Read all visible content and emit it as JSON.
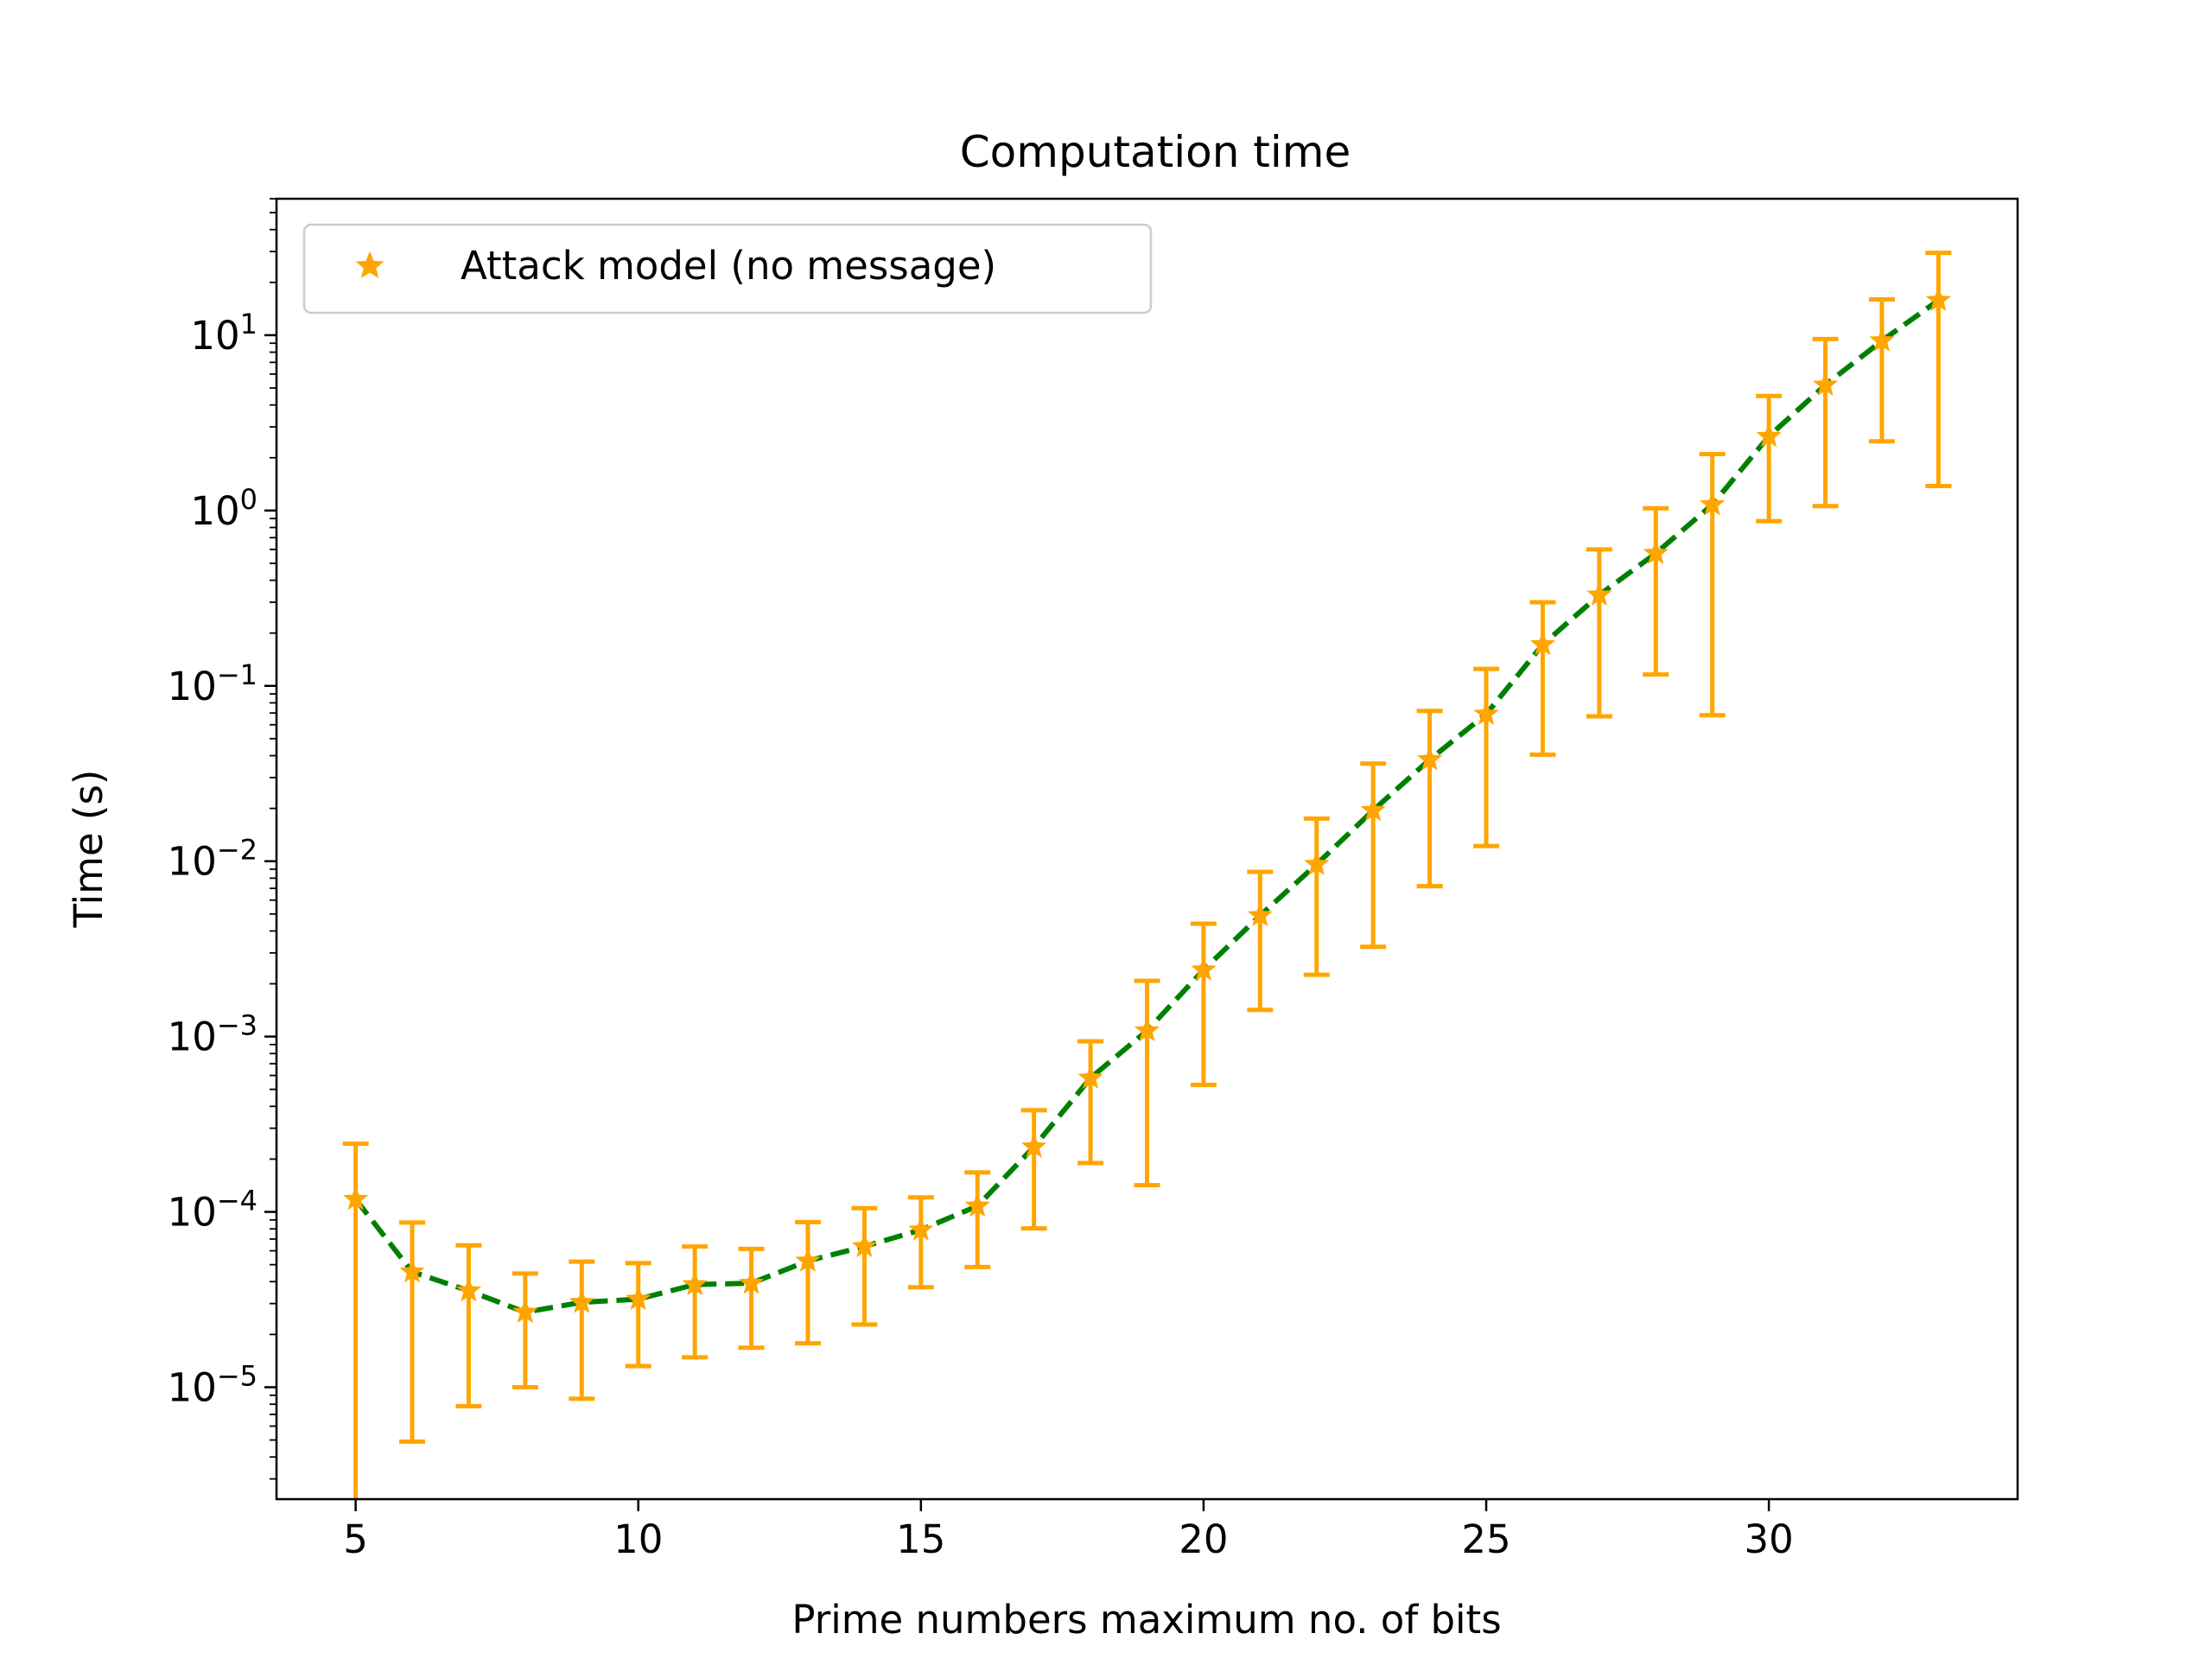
{
  "chart_data": {
    "type": "line",
    "title": "Computation time",
    "xlabel": "Prime numbers maximum no. of bits",
    "ylabel": "Time (s)",
    "y_scale": "log",
    "xlim": [
      3.6,
      34.4
    ],
    "ylim": [
      2.3e-06,
      60
    ],
    "x_ticks": [
      5,
      10,
      15,
      20,
      25,
      30
    ],
    "y_ticks": [
      {
        "base": "10",
        "exp": "1",
        "value": 10
      },
      {
        "base": "10",
        "exp": "0",
        "value": 1
      },
      {
        "base": "10",
        "exp": "−1",
        "value": 0.1
      },
      {
        "base": "10",
        "exp": "−2",
        "value": 0.01
      },
      {
        "base": "10",
        "exp": "−3",
        "value": 0.001
      },
      {
        "base": "10",
        "exp": "−4",
        "value": 0.0001
      },
      {
        "base": "10",
        "exp": "−5",
        "value": 1e-05
      }
    ],
    "legend": {
      "position": "top-left",
      "label": "Attack model (no message)"
    },
    "colors": {
      "line": "#008000",
      "marker": "#ffa500",
      "errorbar": "#ffa500"
    },
    "series": [
      {
        "name": "Attack model (no message)",
        "x": [
          5,
          6,
          7,
          8,
          9,
          10,
          11,
          12,
          13,
          14,
          15,
          16,
          17,
          18,
          19,
          20,
          21,
          22,
          23,
          24,
          25,
          26,
          27,
          28,
          29,
          30,
          31,
          32,
          33
        ],
        "y": [
          0.000118,
          4.55e-05,
          3.55e-05,
          2.68e-05,
          3.05e-05,
          3.18e-05,
          3.85e-05,
          3.92e-05,
          5.25e-05,
          6.35e-05,
          7.9e-05,
          0.000108,
          0.000235,
          0.00058,
          0.00108,
          0.0024,
          0.0049,
          0.0096,
          0.0195,
          0.038,
          0.069,
          0.172,
          0.33,
          0.57,
          1.08,
          2.65,
          5.2,
          9.3,
          15.8
        ],
        "err_low": [
          2.2e-06,
          4.9e-06,
          7.8e-06,
          1e-05,
          8.6e-06,
          1.32e-05,
          1.48e-05,
          1.68e-05,
          1.78e-05,
          2.28e-05,
          3.72e-05,
          4.85e-05,
          8.05e-05,
          0.00019,
          0.000142,
          0.00053,
          0.00142,
          0.00225,
          0.00325,
          0.0072,
          0.0122,
          0.0405,
          0.067,
          0.116,
          0.068,
          0.87,
          1.06,
          2.48,
          1.38
        ],
        "err_high": [
          0.000245,
          8.7e-05,
          6.45e-05,
          4.45e-05,
          5.2e-05,
          5.1e-05,
          6.35e-05,
          6.15e-05,
          8.75e-05,
          0.000105,
          0.000121,
          0.000168,
          0.00038,
          0.00094,
          0.00208,
          0.0044,
          0.0087,
          0.0175,
          0.036,
          0.072,
          0.125,
          0.3,
          0.6,
          1.03,
          2.1,
          4.5,
          9.5,
          16,
          29.5
        ]
      }
    ]
  }
}
